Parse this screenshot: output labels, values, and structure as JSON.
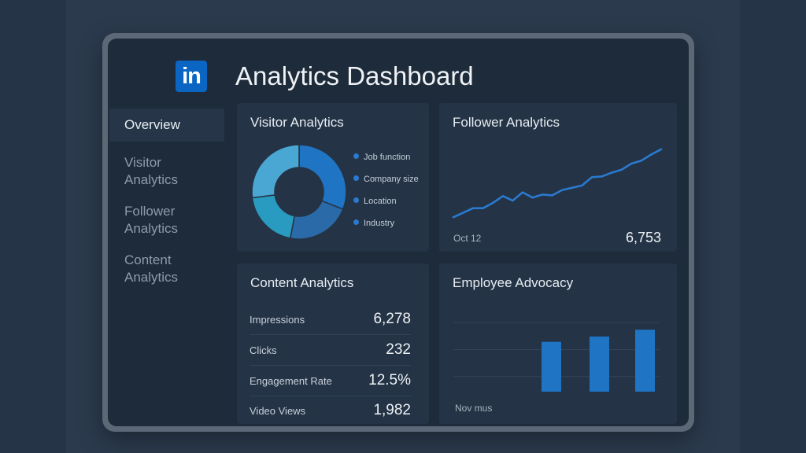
{
  "header": {
    "logo_text": "in",
    "title": "Analytics Dashboard"
  },
  "sidebar": {
    "items": [
      {
        "label": "Overview",
        "active": true
      },
      {
        "label": "Visitor Analytics",
        "active": false
      },
      {
        "label": "Follower Analytics",
        "active": false
      },
      {
        "label": "Content Analytics",
        "active": false
      }
    ]
  },
  "visitor": {
    "title": "Visitor Analytics",
    "legend": [
      "Job function",
      "Company size",
      "Location",
      "Industry"
    ],
    "colors": [
      "#1f74c4",
      "#2a6aa8",
      "#2a9bc0",
      "#4aa7d4"
    ]
  },
  "follower": {
    "title": "Follower Analytics",
    "date_label": "Oct 12",
    "total": "6,753"
  },
  "content": {
    "title": "Content Analytics",
    "rows": [
      {
        "label": "Impressions",
        "value": "6,278"
      },
      {
        "label": "Clicks",
        "value": "232"
      },
      {
        "label": "Engagement Rate",
        "value": "12.5%"
      },
      {
        "label": "Video Views",
        "value": "1,982"
      }
    ]
  },
  "advocacy": {
    "title": "Employee Advocacy",
    "footer_label": "Nov mus"
  },
  "chart_data": [
    {
      "type": "pie",
      "title": "Visitor Analytics",
      "categories": [
        "Job function",
        "Company size",
        "Location",
        "Industry"
      ],
      "values": [
        31,
        22,
        20,
        27
      ],
      "donut": true
    },
    {
      "type": "line",
      "title": "Follower Analytics",
      "x": [
        1,
        2,
        3,
        4,
        5,
        6,
        7,
        8,
        9,
        10,
        11,
        12,
        13,
        14,
        15,
        16,
        17,
        18,
        19,
        20,
        21,
        22
      ],
      "values": [
        5,
        11,
        17,
        17,
        24,
        33,
        27,
        38,
        31,
        35,
        34,
        41,
        44,
        47,
        58,
        59,
        64,
        68,
        76,
        80,
        88,
        95
      ],
      "ylim": [
        0,
        100
      ]
    },
    {
      "type": "bar",
      "title": "Employee Advocacy",
      "categories": [
        "",
        "",
        ""
      ],
      "values": [
        74,
        82,
        92
      ],
      "ylim": [
        0,
        125
      ],
      "grid": true
    }
  ]
}
